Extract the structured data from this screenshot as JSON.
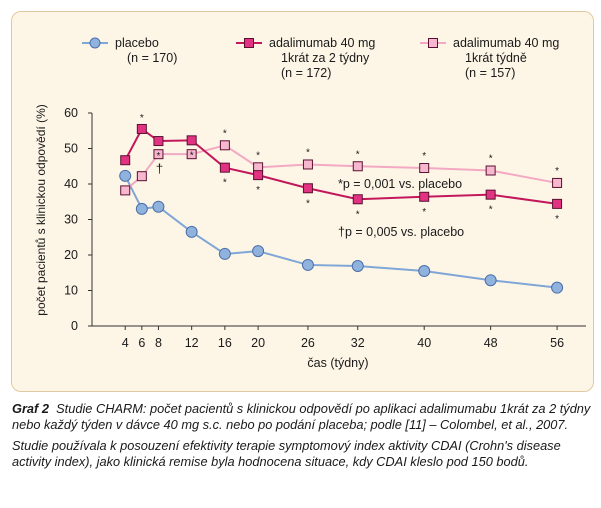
{
  "chart_data": {
    "type": "line",
    "ylabel": "počet pacientů s klinickou odpovědí (%)",
    "xlabel": "čas (týdny)",
    "ylim": [
      0,
      60
    ],
    "yticks": [
      "0",
      "10",
      "20",
      "30",
      "40",
      "50",
      "60"
    ],
    "xticks": [
      "4",
      "6",
      "8",
      "12",
      "16",
      "20",
      "26",
      "32",
      "40",
      "48",
      "56"
    ],
    "grid": false,
    "legend_position": "top",
    "series": [
      {
        "name": "placebo",
        "name_line2": "(n = 170)",
        "name_line3": "",
        "marker": "circle",
        "color": "#7fa6d6",
        "fill": "#8fb3dd",
        "stroke": "#4b6ea8",
        "x": [
          4,
          6,
          8,
          12,
          16,
          20,
          26,
          32,
          40,
          48,
          56
        ],
        "y": [
          42.3,
          33.0,
          33.6,
          26.5,
          20.3,
          21.1,
          17.2,
          16.9,
          15.5,
          12.9,
          10.8
        ],
        "marks": []
      },
      {
        "name": "adalimumab 40 mg",
        "name_line2": "1krát za 2 týdny",
        "name_line3": "(n = 172)",
        "marker": "square",
        "color": "#c2185b",
        "fill": "#e23383",
        "stroke": "#5a1030",
        "x": [
          4,
          6,
          8,
          12,
          16,
          20,
          26,
          32,
          40,
          48,
          56
        ],
        "y": [
          46.7,
          55.5,
          52.1,
          52.3,
          44.6,
          42.5,
          38.8,
          35.7,
          36.4,
          37.0,
          34.4
        ],
        "marks": [
          "",
          "*",
          "*",
          "*",
          "*",
          "*",
          "*",
          "*",
          "*",
          "*",
          "*"
        ]
      },
      {
        "name": "adalimumab 40 mg",
        "name_line2": "1krát týdně",
        "name_line3": "(n = 157)",
        "marker": "square",
        "color": "#f3a9c3",
        "fill": "#f7b8cf",
        "stroke": "#5a1030",
        "x": [
          4,
          6,
          8,
          12,
          16,
          20,
          26,
          32,
          40,
          48,
          56
        ],
        "y": [
          38.2,
          42.2,
          48.4,
          48.4,
          50.9,
          44.7,
          45.5,
          45.0,
          44.5,
          43.8,
          40.3
        ],
        "marks": [
          "",
          "",
          "†",
          "*",
          "*",
          "*",
          "*",
          "*",
          "*",
          "*",
          "*"
        ]
      }
    ],
    "annotations": [
      "*p = 0,001 vs. placebo",
      "†p = 0,005 vs. placebo"
    ]
  },
  "caption": {
    "label": "Graf 2",
    "text1": "Studie CHARM: počet pacientů s klinickou odpovědí po aplikaci adalimumabu 1krát za 2 týdny nebo každý týden v dávce 40 mg s.c. nebo po podání placeba; podle [11] – Colombel, et al., 2007.",
    "text2": "Studie používala k posouzení efektivity terapie symptomový index aktivity CDAI (Crohn's disease activity index), jako klinická remise byla hodnocena situace, kdy CDAI kleslo pod 150 bodů."
  }
}
